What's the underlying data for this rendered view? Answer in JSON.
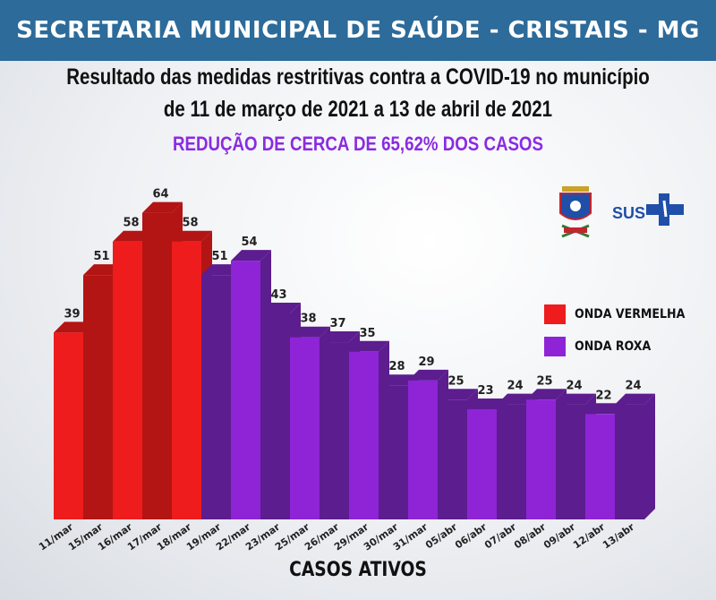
{
  "header": {
    "banner": "SECRETARIA MUNICIPAL DE SAÚDE - CRISTAIS - MG",
    "subtitle_line1": "Resultado das medidas restritivas contra a COVID-19 no município",
    "subtitle_line2": "de 11 de março de 2021 a 13 de abril de 2021",
    "highlight": "REDUÇÃO DE CERCA DE 65,62% DOS CASOS"
  },
  "logos": {
    "sus_label": "SUS"
  },
  "colors": {
    "banner": "#2c6b9a",
    "red": "#ee1c1c",
    "red_dark": "#b31414",
    "purple": "#8e24d6",
    "purple_dark": "#5c1d8f",
    "highlight": "#8a2be2"
  },
  "chart_data": {
    "type": "bar",
    "title": "",
    "xlabel": "CASOS ATIVOS",
    "ylabel": "",
    "categories": [
      "11/mar",
      "15/mar",
      "16/mar",
      "17/mar",
      "18/mar",
      "19/mar",
      "22/mar",
      "23/mar",
      "25/mar",
      "26/mar",
      "29/mar",
      "30/mar",
      "31/mar",
      "05/abr",
      "06/abr",
      "07/abr",
      "08/abr",
      "09/abr",
      "12/abr",
      "13/abr"
    ],
    "values": [
      39,
      51,
      58,
      64,
      58,
      51,
      54,
      43,
      38,
      37,
      35,
      28,
      29,
      25,
      23,
      24,
      25,
      24,
      22,
      24
    ],
    "groups": [
      "red",
      "red",
      "red",
      "red",
      "red",
      "purple",
      "purple",
      "purple",
      "purple",
      "purple",
      "purple",
      "purple",
      "purple",
      "purple",
      "purple",
      "purple",
      "purple",
      "purple",
      "purple",
      "purple"
    ],
    "legend": [
      {
        "label": "ONDA VERMELHA",
        "group": "red"
      },
      {
        "label": "ONDA ROXA",
        "group": "purple"
      }
    ],
    "legend_position": "right",
    "grid": false
  }
}
